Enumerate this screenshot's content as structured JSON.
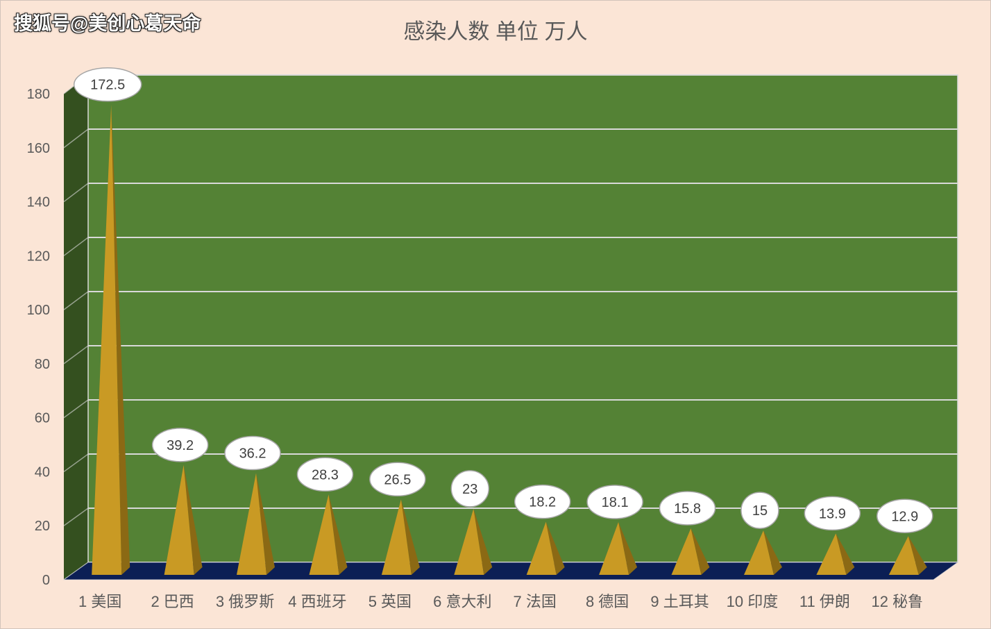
{
  "watermark": "搜狐号@美创心葛天命",
  "chart_data": {
    "type": "bar",
    "style": "3d-pyramid",
    "title": "感染人数 单位 万人",
    "xlabel": "",
    "ylabel": "",
    "categories": [
      "1 美国",
      "2 巴西",
      "3 俄罗斯",
      "4 西班牙",
      "5 英国",
      "6 意大利",
      "7 法国",
      "8 德国",
      "9 土耳其",
      "10 印度",
      "11 伊朗",
      "12 秘鲁"
    ],
    "values": [
      172.5,
      39.2,
      36.2,
      28.3,
      26.5,
      23,
      18.2,
      18.1,
      15.8,
      15,
      13.9,
      12.9
    ],
    "ylim": [
      0,
      180
    ],
    "yticks": [
      0,
      20,
      40,
      60,
      80,
      100,
      120,
      140,
      160,
      180
    ],
    "grid": true,
    "legend": "none",
    "data_labels": true,
    "colors": {
      "background": "#fbe5d6",
      "back_wall": "#548235",
      "side_wall": "#34501f",
      "floor": "#0c1f55",
      "gridline": "#d9d9d9",
      "pyramid_front": "#c99a24",
      "pyramid_side": "#8b6914",
      "label_fill": "#ffffff",
      "label_border": "#a6a6a6",
      "label_text": "#404040",
      "axis_text": "#595959"
    }
  }
}
